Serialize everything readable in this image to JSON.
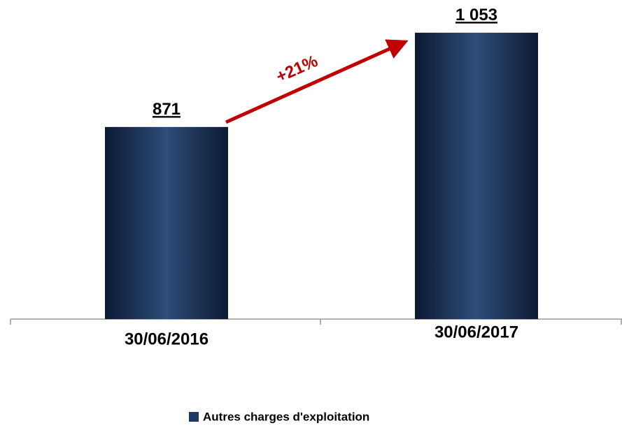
{
  "chart_data": {
    "type": "bar",
    "categories": [
      "30/06/2016",
      "30/06/2017"
    ],
    "series": [
      {
        "name": "Autres charges d'exploitation",
        "color": "#1f3864",
        "values": [
          871,
          1053
        ],
        "value_labels": [
          "871",
          "1 053"
        ]
      }
    ],
    "ylim": [
      500,
      1100
    ],
    "annotation": "+21%"
  }
}
